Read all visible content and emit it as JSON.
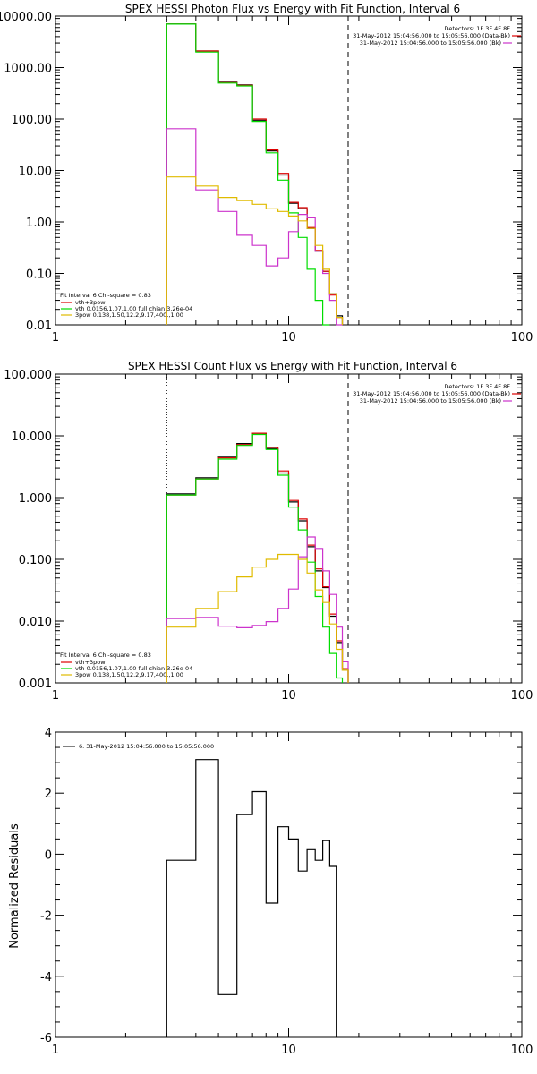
{
  "colors": {
    "background": "#ffffff",
    "axes": "#000000",
    "black": "#000000",
    "red": "#dd0000",
    "green": "#00dd00",
    "magenta": "#cc33cc",
    "yellow": "#e0bb00"
  },
  "panels": {
    "photon": {
      "title": "SPEX HESSI Photon Flux vs Energy with Fit Function, Interval 6"
    },
    "count": {
      "title": "SPEX HESSI Count Flux vs Energy with Fit Function, Interval 6"
    },
    "resid": {
      "title": ""
    }
  },
  "top_legend": {
    "detectors": "Detectors: 1F 3F 4F 8F",
    "line1": "31-May-2012 15:04:56.000 to 15:05:56.000 (Data-Bk)",
    "line2": "31-May-2012 15:04:56.000 to 15:05:56.000 (Bk)"
  },
  "fit_legend": {
    "header": "Fit Interval 6   Chi-square = 0.83",
    "total": "vth+3pow",
    "vth": "vth 0.0156,1.07,1.00  full chian 3.26e-04",
    "pow": "3pow 0.138,1.50,12.2,9.17,400.,1.00"
  },
  "resid_legend": {
    "text": "6. 31-May-2012 15:04:56.000 to 15:05:56.000"
  },
  "chart_data": [
    {
      "type": "line",
      "title": "SPEX HESSI Photon Flux vs Energy with Fit Function, Interval 6",
      "xscale": "log",
      "yscale": "log",
      "xlim": [
        1,
        100
      ],
      "ylim": [
        0.01,
        10000
      ],
      "xticks": [
        "1",
        "10",
        "100"
      ],
      "yticks": [
        "0.01",
        "0.10",
        "1.00",
        "10.00",
        "100.00",
        "1000.00",
        "10000.00"
      ],
      "bin_edges": [
        3,
        4,
        5,
        6,
        7,
        8,
        9,
        10,
        11,
        12,
        13,
        14,
        15,
        16,
        17,
        18,
        20
      ],
      "series": [
        {
          "color": "black",
          "values": [
            7000,
            2100,
            520,
            460,
            95,
            24,
            8.2,
            2.3,
            1.8,
            0.75,
            0.27,
            0.11,
            0.04,
            0.015
          ]
        },
        {
          "color": "red",
          "values": [
            7000,
            2100,
            510,
            450,
            100,
            25,
            8.8,
            2.4,
            1.9,
            0.78,
            0.28,
            0.11,
            0.038,
            0.014
          ]
        },
        {
          "color": "green",
          "values": [
            7000,
            2000,
            500,
            440,
            90,
            22,
            6.5,
            1.5,
            0.5,
            0.12,
            0.03,
            0.008
          ]
        },
        {
          "color": "magenta",
          "values": [
            65,
            4.2,
            1.6,
            0.55,
            0.35,
            0.14,
            0.2,
            0.65,
            1.4,
            1.2,
            0.27,
            0.1,
            0.03,
            0.005
          ]
        },
        {
          "color": "yellow",
          "values": [
            7.5,
            5.0,
            3.0,
            2.6,
            2.2,
            1.8,
            1.6,
            1.3,
            1.05,
            0.75,
            0.35,
            0.12,
            0.04,
            0.014
          ]
        }
      ],
      "vlines": [
        {
          "x": 3,
          "style": "dotted"
        },
        {
          "x": 18,
          "style": "dashed"
        }
      ]
    },
    {
      "type": "line",
      "title": "SPEX HESSI Count Flux vs Energy with Fit Function, Interval 6",
      "xscale": "log",
      "yscale": "log",
      "xlim": [
        1,
        100
      ],
      "ylim": [
        0.001,
        100
      ],
      "xticks": [
        "1",
        "10",
        "100"
      ],
      "yticks": [
        "0.001",
        "0.010",
        "0.100",
        "1.000",
        "10.000",
        "100.000"
      ],
      "bin_edges": [
        3,
        4,
        5,
        6,
        7,
        8,
        9,
        10,
        11,
        12,
        13,
        14,
        15,
        16,
        17,
        18,
        20
      ],
      "series": [
        {
          "color": "black",
          "values": [
            1.15,
            2.1,
            4.5,
            7.5,
            11,
            6.2,
            2.5,
            0.85,
            0.42,
            0.16,
            0.065,
            0.035,
            0.012,
            0.0045,
            0.0016
          ]
        },
        {
          "color": "red",
          "values": [
            1.1,
            2.0,
            4.4,
            7.2,
            11,
            6.5,
            2.7,
            0.9,
            0.45,
            0.17,
            0.07,
            0.036,
            0.013,
            0.0048,
            0.0017
          ]
        },
        {
          "color": "green",
          "values": [
            1.1,
            2.0,
            4.2,
            7.0,
            10.5,
            6.0,
            2.3,
            0.7,
            0.3,
            0.09,
            0.025,
            0.008,
            0.003,
            0.0012
          ]
        },
        {
          "color": "magenta",
          "values": [
            0.011,
            0.0115,
            0.0083,
            0.0078,
            0.0085,
            0.0098,
            0.016,
            0.033,
            0.11,
            0.23,
            0.15,
            0.065,
            0.027,
            0.008,
            0.0022
          ]
        },
        {
          "color": "yellow",
          "values": [
            0.008,
            0.016,
            0.03,
            0.052,
            0.075,
            0.1,
            0.12,
            0.12,
            0.1,
            0.06,
            0.032,
            0.02,
            0.009,
            0.0035,
            0.0016
          ]
        }
      ],
      "vlines": [
        {
          "x": 3,
          "style": "dotted"
        },
        {
          "x": 18,
          "style": "dashed"
        }
      ]
    },
    {
      "type": "line",
      "xscale": "log",
      "yscale": "linear",
      "xlim": [
        1,
        100
      ],
      "ylim": [
        -6,
        4
      ],
      "xticks": [
        "1",
        "10",
        "100"
      ],
      "yticks": [
        "-6",
        "-4",
        "-2",
        "0",
        "2",
        "4"
      ],
      "ylabel": "Normalized Residuals",
      "bin_edges": [
        3,
        4,
        5,
        6,
        7,
        8,
        9,
        10,
        11,
        12,
        13,
        14,
        15,
        16,
        17,
        18
      ],
      "series": [
        {
          "color": "black",
          "values": [
            -0.2,
            3.1,
            -4.6,
            1.3,
            2.05,
            -1.6,
            0.9,
            0.5,
            -0.55,
            0.15,
            -0.2,
            0.45,
            -0.4
          ]
        }
      ]
    }
  ]
}
